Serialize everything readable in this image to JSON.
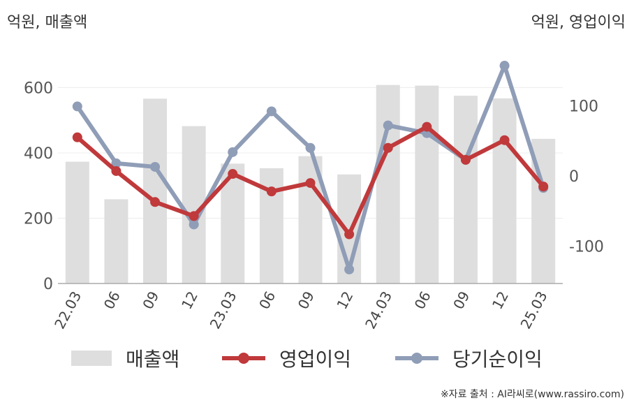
{
  "units": {
    "left": "억원, 매출액",
    "right": "억원, 영업이익"
  },
  "chart_data": {
    "type": "bar+line",
    "categories": [
      "22.03",
      "06",
      "09",
      "12",
      "23.03",
      "06",
      "09",
      "12",
      "24.03",
      "06",
      "09",
      "12",
      "25.03"
    ],
    "series": [
      {
        "name": "매출액",
        "type": "bar",
        "axis": "left",
        "color": "#dedede",
        "values": [
          373,
          258,
          566,
          482,
          367,
          353,
          390,
          334,
          608,
          606,
          575,
          567,
          443
        ]
      },
      {
        "name": "영업이익",
        "type": "line",
        "axis": "right",
        "color": "#c0393b",
        "values": [
          55,
          7,
          -37,
          -57,
          3,
          -22,
          -10,
          -83,
          40,
          70,
          23,
          51,
          -15
        ]
      },
      {
        "name": "당기순이익",
        "type": "line",
        "axis": "right",
        "color": "#8f9db7",
        "values": [
          99,
          18,
          13,
          -69,
          34,
          92,
          40,
          -133,
          72,
          61,
          23,
          157,
          -17
        ]
      }
    ],
    "left_axis": {
      "ylim": [
        0,
        680
      ],
      "ticks": [
        0,
        200,
        400,
        600
      ]
    },
    "right_axis": {
      "ylim": [
        -153,
        163
      ],
      "ticks": [
        -100,
        0,
        100
      ]
    },
    "legend_placement": "bottom",
    "grid": true
  },
  "source": "※자료 출처 : AI라씨로(www.rassiro.com)"
}
